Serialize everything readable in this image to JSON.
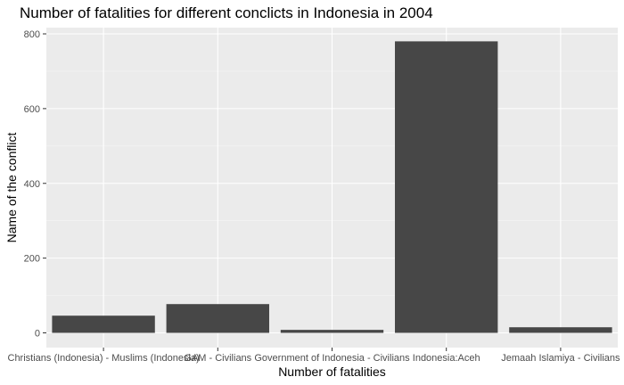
{
  "chart_data": {
    "type": "bar",
    "title": "Number of fatalities for different conclicts in Indonesia in 2004",
    "xlabel": "Number of fatalities",
    "ylabel": "Name of the conflict",
    "categories": [
      "Christians (Indonesia) - Muslims (Indonesia)",
      "GAM - Civilians",
      "Government of Indonesia - Civilians",
      "Indonesia:Aceh",
      "Jemaah Islamiya - Civilians"
    ],
    "values": [
      46,
      77,
      8,
      780,
      15
    ],
    "ylim": [
      0,
      800
    ],
    "yticks": [
      0,
      200,
      400,
      600,
      800
    ],
    "grid": true,
    "legend": "none"
  },
  "colors": {
    "panel_background": "#ebebeb",
    "grid_major": "#ffffff",
    "grid_minor": "#f5f5f5",
    "bar_fill": "#474747",
    "tick_mark": "#333333",
    "tick_text": "#4d4d4d"
  }
}
